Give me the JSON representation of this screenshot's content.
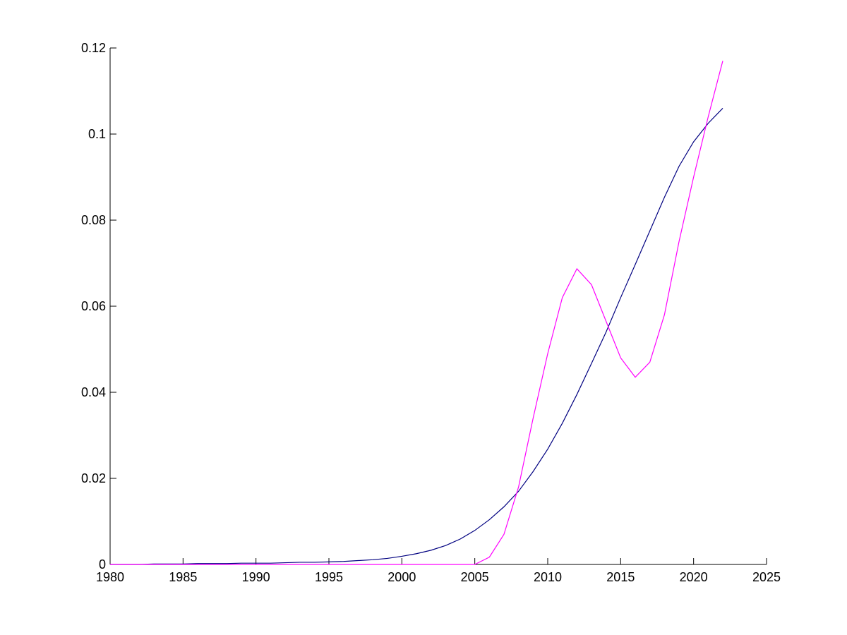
{
  "chart_data": {
    "type": "line",
    "x": [
      1980,
      1981,
      1982,
      1983,
      1984,
      1985,
      1986,
      1987,
      1988,
      1989,
      1990,
      1991,
      1992,
      1993,
      1994,
      1995,
      1996,
      1997,
      1998,
      1999,
      2000,
      2001,
      2002,
      2003,
      2004,
      2005,
      2006,
      2007,
      2008,
      2009,
      2010,
      2011,
      2012,
      2013,
      2014,
      2015,
      2016,
      2017,
      2018,
      2019,
      2020,
      2021,
      2022
    ],
    "series": [
      {
        "color": "#000080",
        "values": [
          0,
          0,
          0,
          0.0001,
          0.0001,
          0.0001,
          0.0002,
          0.0002,
          0.0002,
          0.0003,
          0.0003,
          0.0003,
          0.0004,
          0.0005,
          0.0005,
          0.0006,
          0.0007,
          0.0009,
          0.0011,
          0.0014,
          0.0019,
          0.0025,
          0.0033,
          0.0044,
          0.0059,
          0.0079,
          0.0104,
          0.0134,
          0.017,
          0.0216,
          0.0268,
          0.0328,
          0.0395,
          0.0467,
          0.054,
          0.062,
          0.0697,
          0.0775,
          0.0853,
          0.0925,
          0.0982,
          0.1025,
          0.106
        ]
      },
      {
        "color": "#ff00ff",
        "values": [
          0,
          0,
          0,
          0,
          0,
          0,
          0,
          0,
          0,
          0,
          0,
          0,
          0,
          0,
          0,
          0,
          0,
          0,
          0,
          0,
          0,
          0,
          0,
          0,
          0,
          0,
          0.0017,
          0.007,
          0.018,
          0.034,
          0.049,
          0.062,
          0.0687,
          0.065,
          0.0565,
          0.048,
          0.0435,
          0.047,
          0.058,
          0.075,
          0.09,
          0.104,
          0.117
        ]
      }
    ],
    "xlim": [
      1980,
      2025
    ],
    "xticks": [
      1980,
      1985,
      1990,
      1995,
      2000,
      2005,
      2010,
      2015,
      2020,
      2025
    ],
    "ylim": [
      0,
      0.12
    ],
    "yticks": [
      0,
      0.02,
      0.04,
      0.06,
      0.08,
      0.1,
      0.12
    ]
  }
}
